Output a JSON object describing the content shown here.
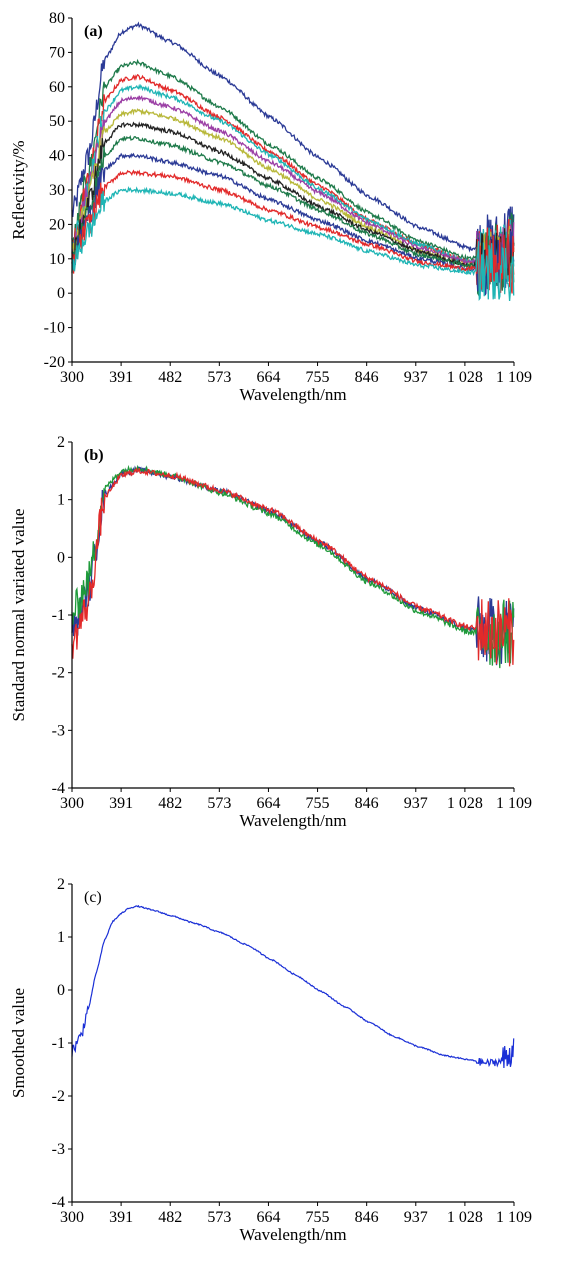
{
  "chart_data": [
    {
      "panel": "(a)",
      "type": "line",
      "xlabel": "Wavelength/nm",
      "ylabel": "Reflectivity/%",
      "x_ticks": [
        "300",
        "391",
        "482",
        "573",
        "664",
        "755",
        "846",
        "937",
        "1 028",
        "1 109"
      ],
      "y_ticks": [
        "80",
        "70",
        "60",
        "50",
        "40",
        "30",
        "20",
        "10",
        "0",
        "-10",
        "-20"
      ],
      "xlim": [
        300,
        1109
      ],
      "ylim": [
        -20,
        80
      ],
      "grid": false,
      "legend": "none",
      "x": [
        300,
        330,
        360,
        391,
        420,
        482,
        573,
        664,
        755,
        846,
        937,
        1028,
        1080,
        1109
      ],
      "series": [
        {
          "color": "#2b3a96",
          "values": [
            23,
            40,
            68,
            76,
            78,
            73,
            63,
            51,
            39,
            28,
            19,
            13,
            15,
            20
          ]
        },
        {
          "color": "#1e7a4a",
          "values": [
            14,
            35,
            60,
            66,
            67,
            63,
            54,
            43,
            33,
            23,
            15,
            10,
            12,
            15
          ]
        },
        {
          "color": "#e22a2a",
          "values": [
            13,
            33,
            56,
            62,
            63,
            59,
            51,
            41,
            31,
            21,
            14,
            9,
            11,
            14
          ]
        },
        {
          "color": "#1fb5b5",
          "values": [
            12,
            31,
            53,
            59,
            60,
            57,
            50,
            40,
            30,
            21,
            14,
            9,
            11,
            13
          ]
        },
        {
          "color": "#9b3fa5",
          "values": [
            11,
            30,
            50,
            56,
            57,
            54,
            47,
            38,
            29,
            20,
            13,
            9,
            10,
            13
          ]
        },
        {
          "color": "#b8b83a",
          "values": [
            10,
            28,
            47,
            52,
            53,
            51,
            45,
            36,
            27,
            19,
            12,
            8,
            10,
            12
          ]
        },
        {
          "color": "#222222",
          "values": [
            10,
            26,
            44,
            49,
            49,
            47,
            41,
            33,
            25,
            18,
            12,
            8,
            10,
            12
          ]
        },
        {
          "color": "#1e7a4a",
          "values": [
            9,
            24,
            40,
            45,
            45,
            43,
            38,
            31,
            24,
            17,
            11,
            8,
            9,
            11
          ]
        },
        {
          "color": "#2b3a96",
          "values": [
            9,
            22,
            36,
            40,
            40,
            38,
            34,
            27,
            21,
            15,
            10,
            7,
            9,
            10
          ]
        },
        {
          "color": "#e22a2a",
          "values": [
            8,
            20,
            31,
            35,
            35,
            34,
            30,
            24,
            19,
            14,
            9,
            7,
            8,
            9
          ]
        },
        {
          "color": "#1fb5b5",
          "values": [
            8,
            18,
            27,
            30,
            30,
            29,
            26,
            21,
            17,
            12,
            8,
            6,
            7,
            6
          ]
        }
      ]
    },
    {
      "panel": "(b)",
      "type": "line",
      "xlabel": "Wavelength/nm",
      "ylabel": "Standard normal variated value",
      "x_ticks": [
        "300",
        "391",
        "482",
        "573",
        "664",
        "755",
        "846",
        "937",
        "1 028",
        "1 109"
      ],
      "y_ticks": [
        "2",
        "1",
        "0",
        "-1",
        "-2",
        "-3",
        "-4"
      ],
      "xlim": [
        300,
        1109
      ],
      "ylim": [
        -4,
        2
      ],
      "grid": false,
      "legend": "none",
      "x": [
        300,
        330,
        360,
        391,
        420,
        482,
        573,
        664,
        755,
        846,
        937,
        1028,
        1080,
        1109
      ],
      "series": [
        {
          "color": "#2b3a96",
          "values": [
            -1.3,
            -0.6,
            1.1,
            1.45,
            1.52,
            1.4,
            1.15,
            0.8,
            0.25,
            -0.4,
            -0.9,
            -1.25,
            -1.3,
            -1.2
          ]
        },
        {
          "color": "#1e9a3a",
          "values": [
            -1.0,
            -0.4,
            1.2,
            1.5,
            1.55,
            1.42,
            1.12,
            0.75,
            0.2,
            -0.45,
            -0.95,
            -1.3,
            -1.35,
            -1.25
          ]
        },
        {
          "color": "#e22a2a",
          "values": [
            -1.5,
            -0.8,
            1.05,
            1.42,
            1.5,
            1.42,
            1.16,
            0.82,
            0.27,
            -0.38,
            -0.88,
            -1.22,
            -1.28,
            -1.3
          ]
        }
      ]
    },
    {
      "panel": "(c)",
      "type": "line",
      "xlabel": "Wavelength/nm",
      "ylabel": "Smoothed value",
      "x_ticks": [
        "300",
        "391",
        "482",
        "573",
        "664",
        "755",
        "846",
        "937",
        "1 028",
        "1 109"
      ],
      "y_ticks": [
        "2",
        "1",
        "0",
        "-1",
        "-2",
        "-3",
        "-4"
      ],
      "xlim": [
        300,
        1109
      ],
      "ylim": [
        -4,
        2
      ],
      "grid": false,
      "legend": "none",
      "x": [
        300,
        315,
        330,
        345,
        360,
        375,
        391,
        405,
        420,
        450,
        482,
        527,
        573,
        620,
        664,
        710,
        755,
        800,
        846,
        890,
        937,
        983,
        1028,
        1060,
        1085,
        1100,
        1109
      ],
      "series": [
        {
          "color": "#1a2fd6",
          "values": [
            -1.15,
            -0.9,
            -0.35,
            0.35,
            0.95,
            1.3,
            1.45,
            1.55,
            1.58,
            1.5,
            1.4,
            1.25,
            1.08,
            0.85,
            0.58,
            0.28,
            -0.02,
            -0.32,
            -0.62,
            -0.88,
            -1.08,
            -1.24,
            -1.32,
            -1.38,
            -1.35,
            -1.25,
            -1.0
          ]
        }
      ]
    }
  ]
}
